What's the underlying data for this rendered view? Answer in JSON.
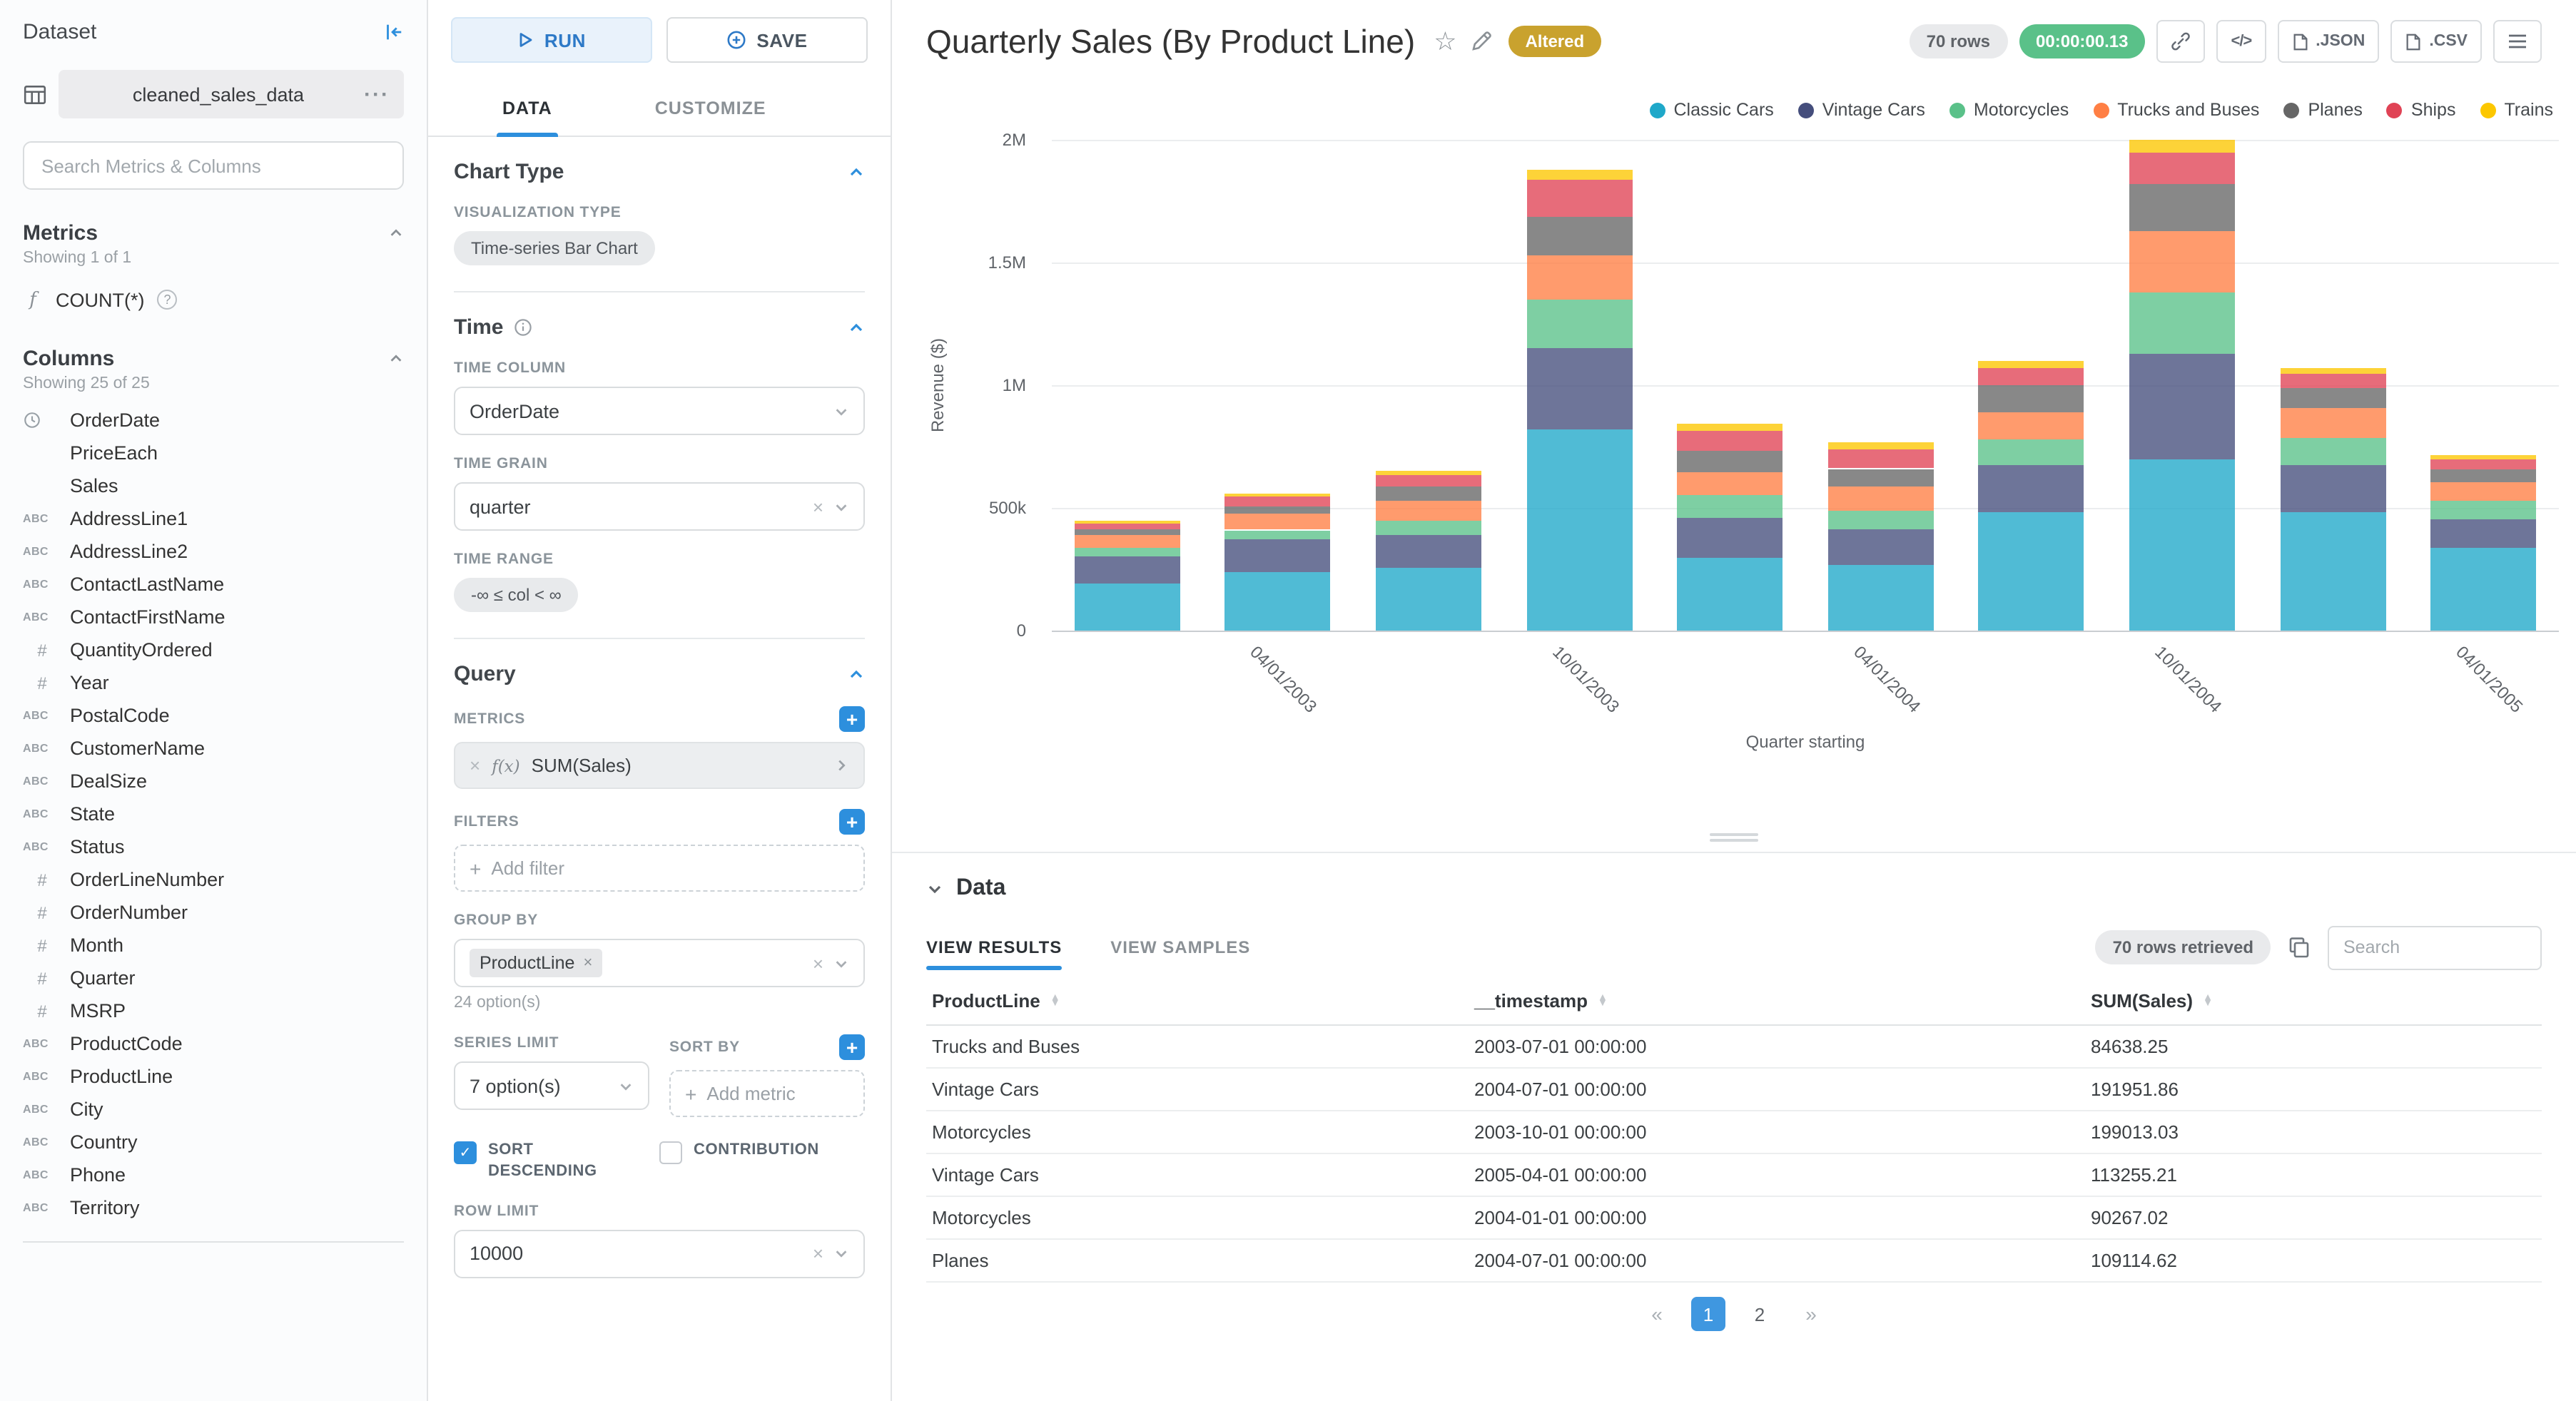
{
  "colors": {
    "accent": "#2D8FDD",
    "success_badge": "#5AC189",
    "altered_badge": "#C9A22E"
  },
  "icons": {
    "code": "</>",
    "ellipsis": "···",
    "star": "☆",
    "help": "?",
    "plus": "+",
    "close": "×",
    "check": "✓",
    "fx": "f(x)",
    "function": "f",
    "prev": "«",
    "next": "»"
  },
  "dataset_panel": {
    "title": "Dataset",
    "dataset_name": "cleaned_sales_data",
    "search_placeholder": "Search Metrics & Columns",
    "metrics": {
      "title": "Metrics",
      "showing": "Showing 1 of 1",
      "items": [
        {
          "icon": "function",
          "label": "COUNT(*)"
        }
      ]
    },
    "columns": {
      "title": "Columns",
      "showing": "Showing 25 of 25",
      "items": [
        {
          "type": "time",
          "label": "OrderDate"
        },
        {
          "type": "",
          "label": "PriceEach"
        },
        {
          "type": "",
          "label": "Sales"
        },
        {
          "type": "abc",
          "label": "AddressLine1"
        },
        {
          "type": "abc",
          "label": "AddressLine2"
        },
        {
          "type": "abc",
          "label": "ContactLastName"
        },
        {
          "type": "abc",
          "label": "ContactFirstName"
        },
        {
          "type": "num",
          "label": "QuantityOrdered"
        },
        {
          "type": "num",
          "label": "Year"
        },
        {
          "type": "abc",
          "label": "PostalCode"
        },
        {
          "type": "abc",
          "label": "CustomerName"
        },
        {
          "type": "abc",
          "label": "DealSize"
        },
        {
          "type": "abc",
          "label": "State"
        },
        {
          "type": "abc",
          "label": "Status"
        },
        {
          "type": "num",
          "label": "OrderLineNumber"
        },
        {
          "type": "num",
          "label": "OrderNumber"
        },
        {
          "type": "num",
          "label": "Month"
        },
        {
          "type": "num",
          "label": "Quarter"
        },
        {
          "type": "num",
          "label": "MSRP"
        },
        {
          "type": "abc",
          "label": "ProductCode"
        },
        {
          "type": "abc",
          "label": "ProductLine"
        },
        {
          "type": "abc",
          "label": "City"
        },
        {
          "type": "abc",
          "label": "Country"
        },
        {
          "type": "abc",
          "label": "Phone"
        },
        {
          "type": "abc",
          "label": "Territory"
        }
      ]
    }
  },
  "control_panel": {
    "run_label": "RUN",
    "save_label": "SAVE",
    "tabs": [
      {
        "label": "DATA",
        "active": true
      },
      {
        "label": "CUSTOMIZE",
        "active": false
      }
    ],
    "chart_type": {
      "title": "Chart Type",
      "viz_label": "VISUALIZATION TYPE",
      "viz_value": "Time-series Bar Chart"
    },
    "time": {
      "title": "Time",
      "column_label": "TIME COLUMN",
      "column_value": "OrderDate",
      "grain_label": "TIME GRAIN",
      "grain_value": "quarter",
      "range_label": "TIME RANGE",
      "range_value": "-∞ ≤ col < ∞"
    },
    "query": {
      "title": "Query",
      "metrics_label": "METRICS",
      "metric_value": "SUM(Sales)",
      "filters_label": "FILTERS",
      "add_filter": "Add filter",
      "group_by_label": "GROUP BY",
      "group_by_tag": "ProductLine",
      "group_by_options": "24 option(s)",
      "series_limit_label": "SERIES LIMIT",
      "series_limit_value": "7 option(s)",
      "sort_by_label": "SORT BY",
      "add_metric": "Add metric",
      "sort_descending_label": "SORT DESCENDING",
      "contribution_label": "CONTRIBUTION",
      "row_limit_label": "ROW LIMIT",
      "row_limit_value": "10000"
    }
  },
  "header": {
    "title": "Quarterly Sales (By Product Line)",
    "altered_badge": "Altered",
    "rows_badge": "70 rows",
    "timer_badge": "00:00:00.13",
    "json_label": ".JSON",
    "csv_label": ".CSV"
  },
  "chart_data": {
    "type": "bar",
    "stacked": true,
    "title": "Quarterly Sales (By Product Line)",
    "xlabel": "Quarter starting",
    "ylabel": "Revenue ($)",
    "ylim": [
      0,
      2000000
    ],
    "grid": true,
    "legend_position": "top-right",
    "y_ticks": [
      {
        "value": 0,
        "label": "0"
      },
      {
        "value": 500000,
        "label": "500k"
      },
      {
        "value": 1000000,
        "label": "1M"
      },
      {
        "value": 1500000,
        "label": "1.5M"
      },
      {
        "value": 2000000,
        "label": "2M"
      }
    ],
    "categories": [
      "2003-01-01",
      "2003-04-01",
      "2003-07-01",
      "2003-10-01",
      "2004-01-01",
      "2004-04-01",
      "2004-07-01",
      "2004-10-01",
      "2005-01-01",
      "2005-04-01"
    ],
    "x_tick_labels": [
      {
        "index": 1,
        "label": "04/01/2003"
      },
      {
        "index": 3,
        "label": "10/01/2003"
      },
      {
        "index": 5,
        "label": "04/01/2004"
      },
      {
        "index": 7,
        "label": "10/01/2004"
      },
      {
        "index": 9,
        "label": "04/01/2005"
      }
    ],
    "series": [
      {
        "name": "Classic Cars",
        "color": "#1FA8C9",
        "values": [
          190000,
          240000,
          255000,
          820000,
          295000,
          265000,
          480000,
          700000,
          480000,
          340000
        ]
      },
      {
        "name": "Vintage Cars",
        "color": "#454E7C",
        "values": [
          115000,
          130000,
          135000,
          330000,
          165000,
          150000,
          191951.86,
          430000,
          195000,
          113255.21
        ]
      },
      {
        "name": "Motorcycles",
        "color": "#5AC189",
        "values": [
          30000,
          40000,
          55000,
          199013.03,
          90267.02,
          75000,
          105000,
          250000,
          110000,
          75000
        ]
      },
      {
        "name": "Trucks and Buses",
        "color": "#FF7F44",
        "values": [
          55000,
          65000,
          84638.25,
          180000,
          95000,
          95000,
          115000,
          250000,
          120000,
          75000
        ]
      },
      {
        "name": "Planes",
        "color": "#666666",
        "values": [
          20000,
          30000,
          55000,
          160000,
          85000,
          75000,
          109114.62,
          190000,
          85000,
          55000
        ]
      },
      {
        "name": "Ships",
        "color": "#E04355",
        "values": [
          25000,
          40000,
          50000,
          150000,
          85000,
          80000,
          70000,
          130000,
          55000,
          40000
        ]
      },
      {
        "name": "Trains",
        "color": "#FCC700",
        "values": [
          10000,
          15000,
          15000,
          40000,
          25000,
          25000,
          25000,
          50000,
          25000,
          15000
        ]
      }
    ]
  },
  "data_panel": {
    "title": "Data",
    "tabs": [
      {
        "label": "VIEW RESULTS",
        "active": true
      },
      {
        "label": "VIEW SAMPLES",
        "active": false
      }
    ],
    "rows_retrieved": "70 rows retrieved",
    "search_placeholder": "Search",
    "table": {
      "columns": [
        "ProductLine",
        "__timestamp",
        "SUM(Sales)"
      ],
      "rows": [
        [
          "Trucks and Buses",
          "2003-07-01 00:00:00",
          "84638.25"
        ],
        [
          "Vintage Cars",
          "2004-07-01 00:00:00",
          "191951.86"
        ],
        [
          "Motorcycles",
          "2003-10-01 00:00:00",
          "199013.03"
        ],
        [
          "Vintage Cars",
          "2005-04-01 00:00:00",
          "113255.21"
        ],
        [
          "Motorcycles",
          "2004-01-01 00:00:00",
          "90267.02"
        ],
        [
          "Planes",
          "2004-07-01 00:00:00",
          "109114.62"
        ]
      ]
    },
    "pagination": {
      "prev": "«",
      "pages": [
        "1",
        "2"
      ],
      "next": "»",
      "active": "1"
    }
  }
}
